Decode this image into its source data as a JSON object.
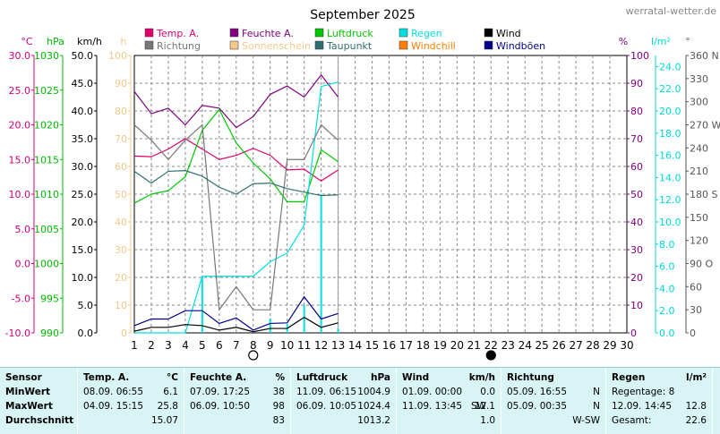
{
  "site": "werratal-wetter.de",
  "chart_data": {
    "type": "line",
    "title": "September 2025",
    "x_ticks": [
      1,
      2,
      3,
      4,
      5,
      6,
      7,
      8,
      9,
      10,
      11,
      12,
      13,
      14,
      15,
      16,
      17,
      18,
      19,
      20,
      21,
      22,
      23,
      24,
      25,
      26,
      27,
      28,
      29,
      30
    ],
    "xlim": [
      1,
      30
    ],
    "grid": true,
    "legend_position": "top",
    "moon_markers": [
      {
        "day": 8,
        "phase": "full"
      },
      {
        "day": 22,
        "phase": "new"
      }
    ],
    "left_axes": [
      {
        "unit": "°C",
        "color": "#d0007a",
        "min": -10,
        "max": 30,
        "ticks": [
          "30.0",
          "25.0",
          "20.0",
          "15.0",
          "10.0",
          "5.0",
          "0.0",
          "-5.0",
          "-10.0"
        ]
      },
      {
        "unit": "hPa",
        "color": "#00b800",
        "min": 990,
        "max": 1030,
        "ticks": [
          "1030",
          "1025",
          "1020",
          "1015",
          "1010",
          "1005",
          "1000",
          "995",
          "990"
        ]
      },
      {
        "unit": "km/h",
        "color": "#000000",
        "min": 0,
        "max": 50,
        "ticks": [
          "50.0",
          "45.0",
          "40.0",
          "35.0",
          "30.0",
          "25.0",
          "20.0",
          "15.0",
          "10.0",
          "5.0",
          "0.0"
        ]
      },
      {
        "unit": "h",
        "color": "#f5c88a",
        "min": 0,
        "max": 100,
        "ticks": [
          "100",
          "90",
          "80",
          "70",
          "60",
          "50",
          "40",
          "30",
          "20",
          "10",
          "0"
        ]
      }
    ],
    "right_axes": [
      {
        "unit": "%",
        "color": "#800080",
        "min": 0,
        "max": 100,
        "ticks": [
          "100",
          "90",
          "80",
          "70",
          "60",
          "50",
          "40",
          "30",
          "20",
          "10",
          "0"
        ]
      },
      {
        "unit": "l/m²",
        "color": "#00d8d8",
        "min": 0,
        "max": 25,
        "ticks": [
          "24.0",
          "22.0",
          "20.0",
          "18.0",
          "16.0",
          "14.0",
          "12.0",
          "10.0",
          "8.0",
          "6.0",
          "4.0",
          "2.0",
          "0.0"
        ]
      },
      {
        "unit": "°",
        "color": "#555555",
        "min": 0,
        "max": 360,
        "ticks": [
          "360 N",
          "330",
          "300",
          "270 W",
          "240",
          "210",
          "180 S",
          "150",
          "120",
          "90 O",
          "60",
          "30",
          "0"
        ]
      }
    ],
    "series": [
      {
        "name": "Temp. A.",
        "color": "#e0006e",
        "axis": "°C",
        "x": [
          1,
          2,
          3,
          4,
          5,
          6,
          7,
          8,
          9,
          10,
          11,
          12,
          13
        ],
        "y": [
          15.5,
          15.4,
          16.5,
          18.0,
          16.5,
          15.0,
          15.6,
          16.6,
          15.6,
          13.5,
          13.6,
          11.9,
          13.5
        ]
      },
      {
        "name": "Feuchte A.",
        "color": "#800080",
        "axis": "%",
        "x": [
          1,
          2,
          3,
          4,
          5,
          6,
          7,
          8,
          9,
          10,
          11,
          12,
          13
        ],
        "y": [
          87,
          79,
          81,
          75,
          82,
          81,
          74,
          78,
          86,
          89,
          85,
          93,
          85
        ]
      },
      {
        "name": "Luftdruck",
        "color": "#00c800",
        "axis": "hPa",
        "x": [
          1,
          2,
          3,
          4,
          5,
          6,
          7,
          8,
          9,
          10,
          11,
          12,
          13
        ],
        "y": [
          1008.7,
          1010.0,
          1010.5,
          1012.5,
          1019.2,
          1022.2,
          1017.4,
          1014.5,
          1012.2,
          1008.9,
          1008.9,
          1016.4,
          1014.7
        ]
      },
      {
        "name": "Regen",
        "color": "#00e0e0",
        "axis": "l/m²",
        "x": [
          1,
          2,
          3,
          4,
          5,
          6,
          7,
          8,
          9,
          10,
          11,
          12,
          13
        ],
        "y": [
          0,
          0,
          0,
          0,
          5.1,
          5.1,
          5.1,
          5.1,
          6.4,
          7.2,
          9.7,
          22.2,
          22.6
        ]
      },
      {
        "name": "Wind",
        "color": "#000000",
        "axis": "km/h",
        "x": [
          1,
          2,
          3,
          4,
          5,
          6,
          7,
          8,
          9,
          10,
          11,
          12,
          13
        ],
        "y": [
          0.3,
          1.0,
          1.0,
          1.5,
          1.3,
          0.5,
          1.0,
          0.2,
          0.8,
          0.8,
          2.8,
          1.0,
          1.8
        ]
      },
      {
        "name": "Richtung",
        "color": "#777777",
        "axis": "°",
        "x": [
          1,
          2,
          3,
          4,
          5,
          6,
          7,
          8,
          9,
          10,
          11,
          12,
          13
        ],
        "y": [
          270,
          250,
          225,
          250,
          270,
          30,
          60,
          30,
          30,
          225,
          225,
          270,
          250
        ]
      },
      {
        "name": "Sonnenschein",
        "color": "#f5c88a",
        "axis": "h",
        "x": [],
        "y": []
      },
      {
        "name": "Taupunkt",
        "color": "#307070",
        "axis": "°C",
        "x": [
          1,
          2,
          3,
          4,
          5,
          6,
          7,
          8,
          9,
          10,
          11,
          12,
          13
        ],
        "y": [
          13.3,
          11.6,
          13.3,
          13.4,
          12.6,
          11.0,
          10.0,
          11.5,
          11.6,
          10.8,
          10.3,
          9.8,
          9.9
        ]
      },
      {
        "name": "Windchill",
        "color": "#ff8000",
        "axis": "°C",
        "x": [],
        "y": []
      },
      {
        "name": "Windböen",
        "color": "#00008b",
        "axis": "km/h",
        "x": [
          1,
          2,
          3,
          4,
          5,
          6,
          7,
          8,
          9,
          10,
          11,
          12,
          13
        ],
        "y": [
          1.3,
          2.5,
          2.5,
          4.0,
          4.0,
          1.7,
          2.7,
          0.5,
          1.7,
          1.8,
          6.5,
          2.5,
          3.5
        ]
      }
    ]
  },
  "stats": {
    "labels": {
      "sensor": "Sensor",
      "min": "MinWert",
      "max": "MaxWert",
      "avg": "Durchschnitt"
    },
    "temp": {
      "title": "Temp. A.",
      "unit": "°C",
      "min_time": "08.09.  06:55",
      "min_val": "6.1",
      "max_time": "04.09.  15:15",
      "max_val": "25.8",
      "avg_val": "15.07"
    },
    "hum": {
      "title": "Feuchte A.",
      "unit": "%",
      "min_time": "07.09.  17:25",
      "min_val": "38",
      "max_time": "06.09.  10:50",
      "max_val": "98",
      "avg_val": "83"
    },
    "press": {
      "title": "Luftdruck",
      "unit": "hPa",
      "min_time": "11.09.  06:15",
      "min_val": "1004.9",
      "max_time": "06.09.  10:05",
      "max_val": "1024.4",
      "avg_val": "1013.2"
    },
    "wind": {
      "title": "Wind",
      "unit": "km/h",
      "min_time": "01.09.  00:00",
      "min_val": "0.0",
      "max_time": "11.09.  13:45",
      "max_dir": "SW",
      "max_val": "12.1",
      "avg_val": "1.0"
    },
    "dir": {
      "title": "Richtung",
      "min_time": "05.09.  16:55",
      "min_val": "N",
      "max_time": "05.09.  00:35",
      "max_val": "N",
      "avg_val": "W-SW"
    },
    "rain": {
      "title": "Regen",
      "unit": "l/m²",
      "days_label": "Regentage: 8",
      "max_time": "12.09.  14:45",
      "max_val": "12.8",
      "total_label": "Gesamt:",
      "total_val": "22.6"
    }
  }
}
